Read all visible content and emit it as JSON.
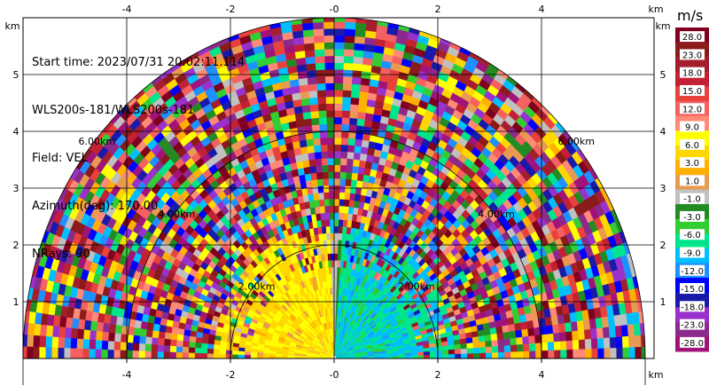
{
  "info": {
    "start_time": "Start time: 2023/07/31 20:02:11.114",
    "instrument": "WLS200s-181/WLS200s-181",
    "field": "Field: VEL",
    "azimuth": "Azimuth(deg): 170.00",
    "nrays": "NRays: 90"
  },
  "colorbar": {
    "title": "m/s",
    "colors": [
      "#800020",
      "#8b1a1a",
      "#a51e2e",
      "#c42034",
      "#e8423c",
      "#f56060",
      "#ff8a75",
      "#ffff00",
      "#ffd700",
      "#ffb000",
      "#e89a50",
      "#c0c0c0",
      "#228b22",
      "#32cd32",
      "#00e58c",
      "#00bfff",
      "#1e90ff",
      "#0000ff",
      "#1a1aaa",
      "#9932cc",
      "#8b2a8b",
      "#a0137a"
    ],
    "labels": [
      "28.0",
      "23.0",
      "18.0",
      "15.0",
      "12.0",
      "9.0",
      "6.0",
      "3.0",
      "1.0",
      "-1.0",
      "-3.0",
      "-6.0",
      "-9.0",
      "-12.0",
      "-15.0",
      "-18.0",
      "-23.0",
      "-28.0"
    ]
  },
  "chart_data": {
    "type": "heatmap",
    "subtype": "lidar RHI-like polar sector (x horizontal distance, y height)",
    "x_unit": "km",
    "y_unit": "km",
    "xlim": [
      -6.1,
      6.1
    ],
    "ylim": [
      0,
      5.9
    ],
    "x_ticks": [
      "-4",
      "-2",
      "-0",
      "2",
      "4"
    ],
    "x_tick_values": [
      -4,
      -2,
      0,
      2,
      4
    ],
    "y_ticks": [
      "1",
      "2",
      "3",
      "4",
      "5"
    ],
    "y_tick_values": [
      1,
      2,
      3,
      4,
      5
    ],
    "x_unit_label": "km",
    "y_unit_label": "km",
    "range_rings_km": [
      2,
      4,
      6
    ],
    "ring_labels": [
      "2.00km",
      "4.00km",
      "6.00km"
    ],
    "max_range_km": 6,
    "colorbar_unit": "m/s",
    "field": "VEL",
    "grid": true
  }
}
